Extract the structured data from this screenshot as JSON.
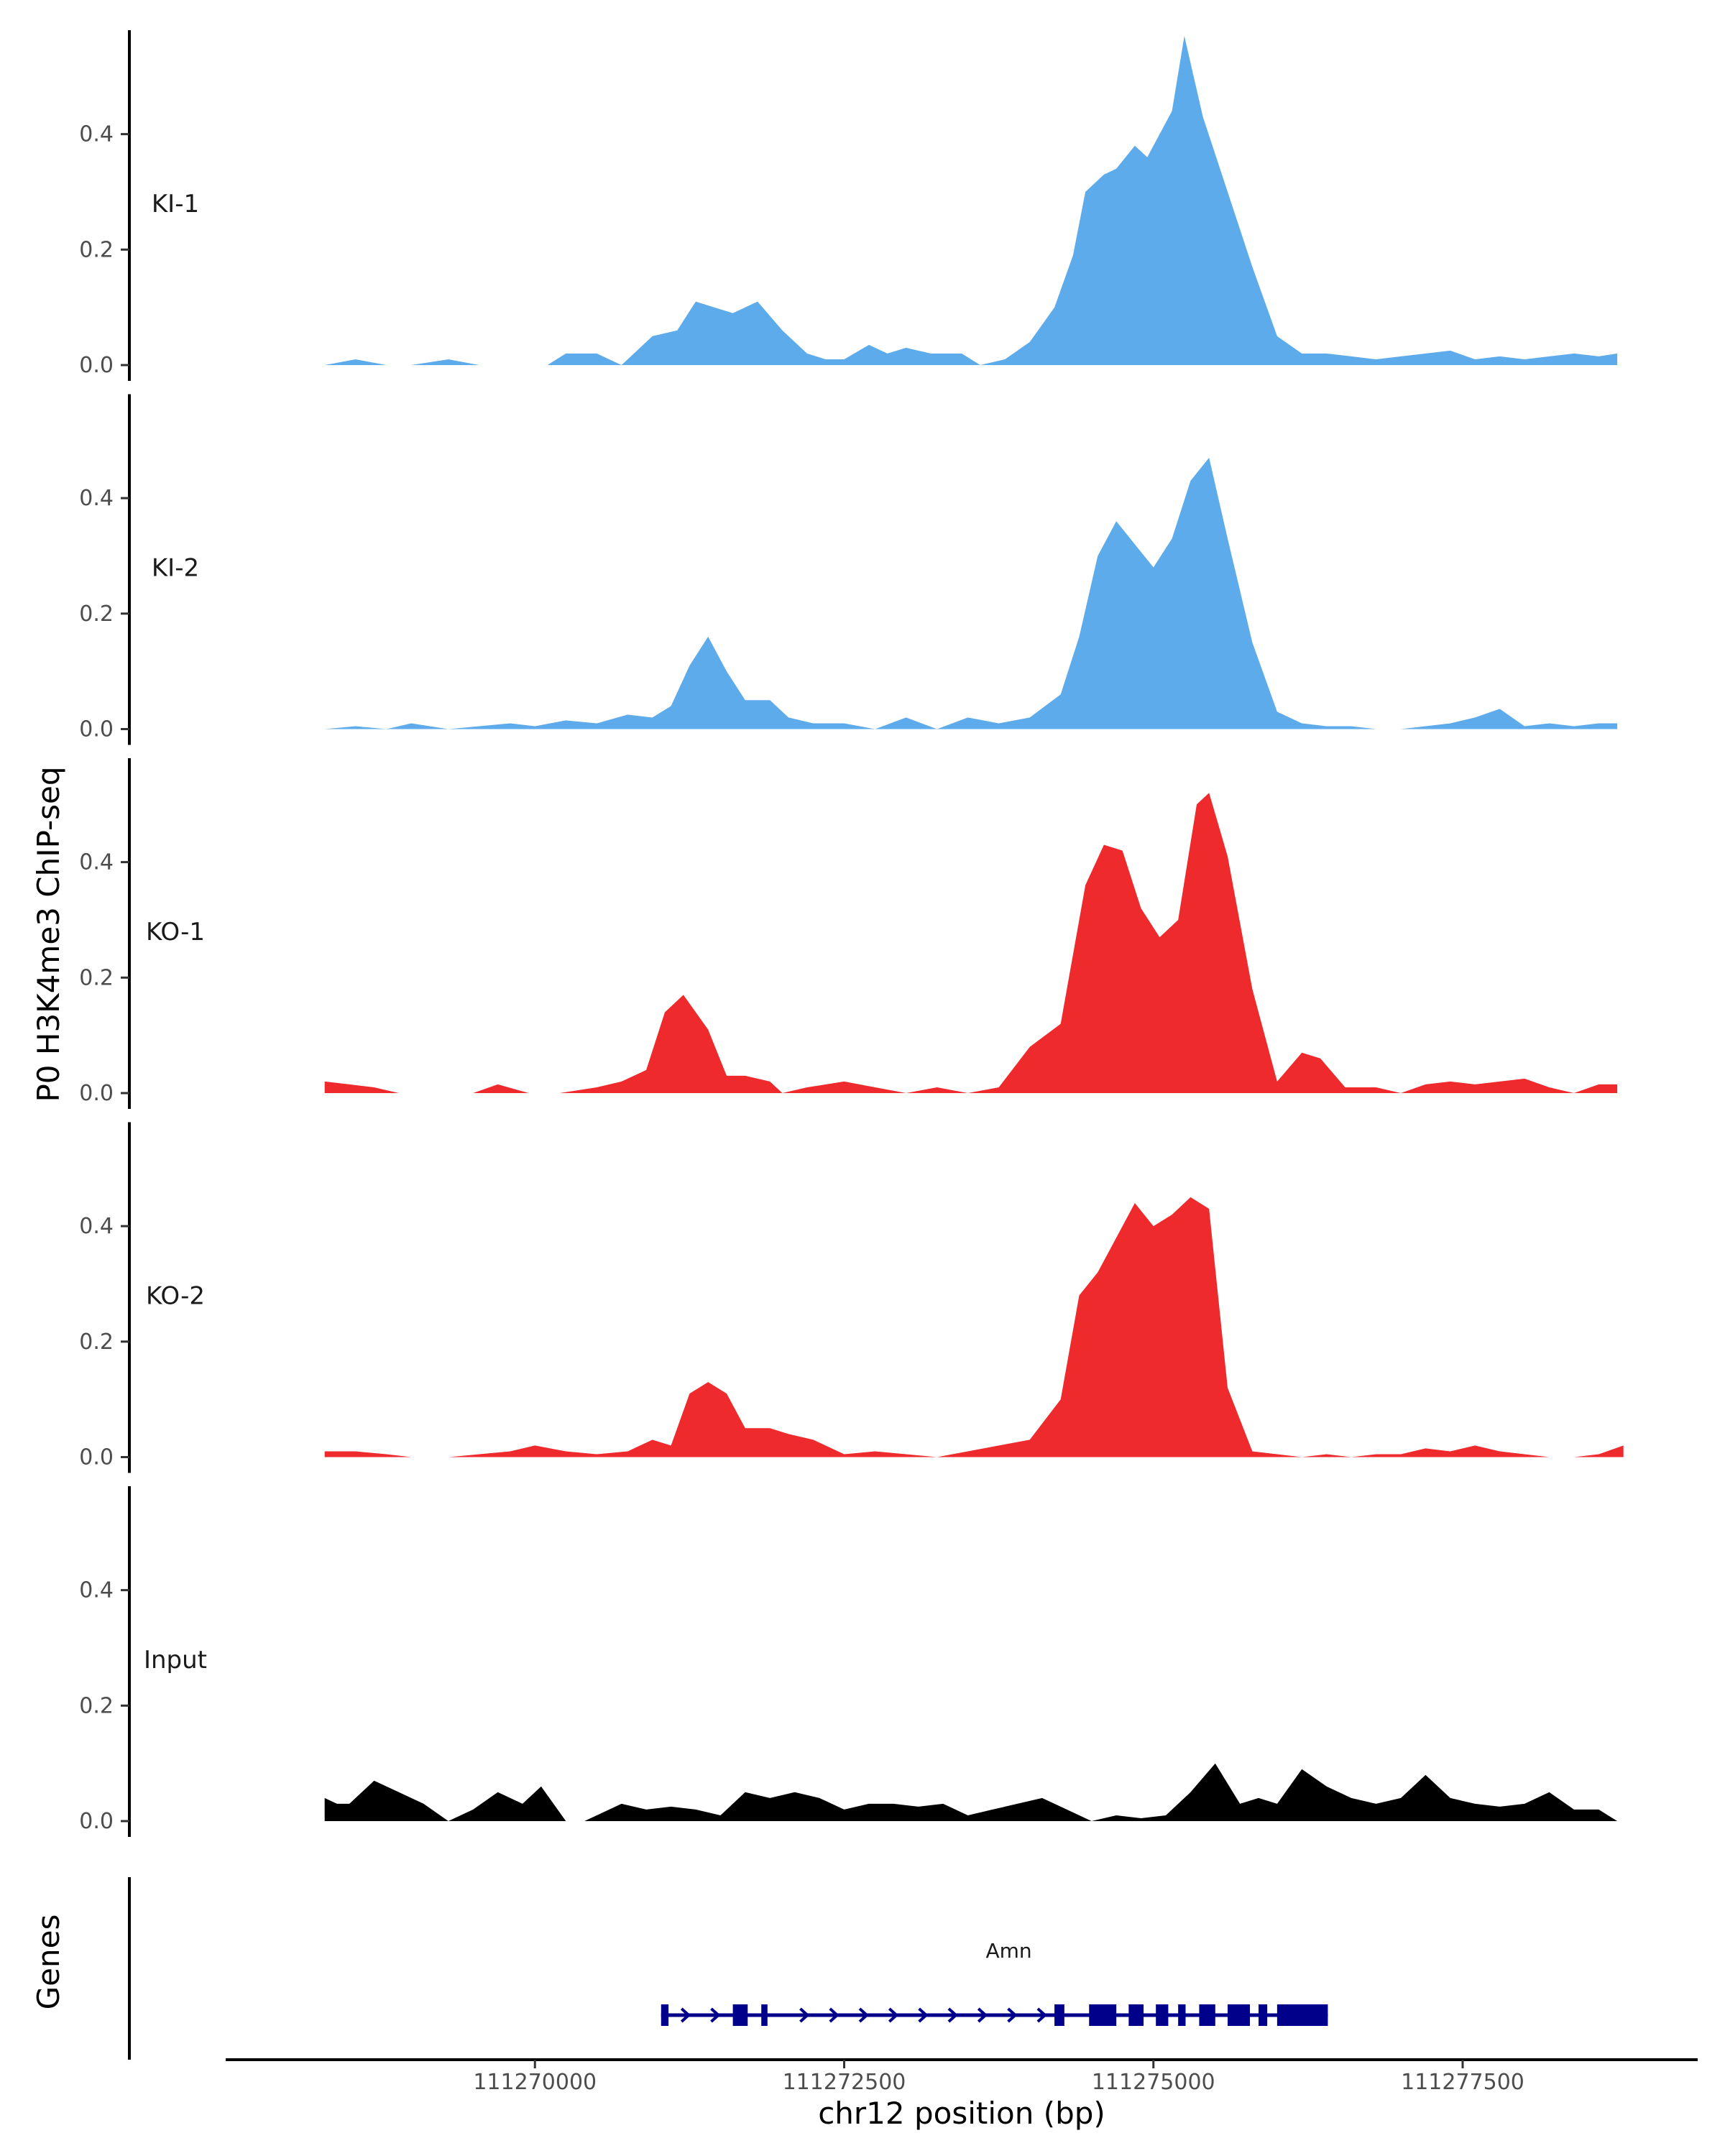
{
  "chart_data": {
    "type": "area",
    "title": "",
    "ylabel": "P0 H3K4me3 ChIP-seq",
    "xlabel": "chr12 position (bp)",
    "xlim": [
      111267500,
      111279400
    ],
    "ylim": [
      0,
      0.58
    ],
    "yticks": [
      0.0,
      0.2,
      0.4
    ],
    "ytick_labels": [
      "0.0",
      "0.2",
      "0.4"
    ],
    "xticks": [
      111270000,
      111272500,
      111275000,
      111277500
    ],
    "xtick_labels": [
      "111270000",
      "111272500",
      "111275000",
      "111277500"
    ],
    "colors": {
      "KI": "#5eabec",
      "KO": "#ee2a2c",
      "Input": "#000000",
      "gene": "#00008b"
    },
    "tracks": [
      {
        "name": "KI-1",
        "color": "#5eabec",
        "x": [
          111268300,
          111268550,
          111268800,
          111269000,
          111269300,
          111269550,
          111269800,
          111270100,
          111270250,
          111270500,
          111270700,
          111270950,
          111271150,
          111271300,
          111271450,
          111271600,
          111271800,
          111272000,
          111272200,
          111272350,
          111272500,
          111272700,
          111272850,
          111273000,
          111273200,
          111273450,
          111273600,
          111273800,
          111274000,
          111274200,
          111274350,
          111274450,
          111274600,
          111274700,
          111274850,
          111274950,
          111275050,
          111275150,
          111275250,
          111275400,
          111275600,
          111275800,
          111276000,
          111276200,
          111276400,
          111276600,
          111276800,
          111277000,
          111277200,
          111277400,
          111277600,
          111277800,
          111278000,
          111278200,
          111278400,
          111278600,
          111278750
        ],
        "values": [
          0.0,
          0.01,
          0.0,
          0.0,
          0.01,
          0.0,
          0.0,
          0.0,
          0.02,
          0.02,
          0.0,
          0.05,
          0.06,
          0.11,
          0.1,
          0.09,
          0.11,
          0.06,
          0.02,
          0.01,
          0.01,
          0.035,
          0.02,
          0.03,
          0.02,
          0.02,
          0.0,
          0.01,
          0.04,
          0.1,
          0.19,
          0.3,
          0.33,
          0.34,
          0.38,
          0.36,
          0.4,
          0.44,
          0.57,
          0.43,
          0.3,
          0.17,
          0.05,
          0.02,
          0.02,
          0.015,
          0.01,
          0.015,
          0.02,
          0.025,
          0.01,
          0.015,
          0.01,
          0.015,
          0.02,
          0.015,
          0.02
        ]
      },
      {
        "name": "KI-2",
        "color": "#5eabec",
        "x": [
          111268300,
          111268550,
          111268800,
          111269000,
          111269300,
          111269550,
          111269800,
          111270000,
          111270250,
          111270500,
          111270750,
          111270950,
          111271100,
          111271250,
          111271400,
          111271550,
          111271700,
          111271900,
          111272050,
          111272250,
          111272500,
          111272750,
          111273000,
          111273250,
          111273500,
          111273750,
          111274000,
          111274250,
          111274400,
          111274550,
          111274700,
          111274850,
          111275000,
          111275150,
          111275300,
          111275450,
          111275600,
          111275800,
          111276000,
          111276200,
          111276400,
          111276600,
          111276800,
          111277000,
          111277200,
          111277400,
          111277600,
          111277800,
          111278000,
          111278200,
          111278400,
          111278600,
          111278750
        ],
        "values": [
          0.0,
          0.005,
          0.0,
          0.01,
          0.0,
          0.005,
          0.01,
          0.005,
          0.015,
          0.01,
          0.025,
          0.02,
          0.04,
          0.11,
          0.16,
          0.1,
          0.05,
          0.05,
          0.02,
          0.01,
          0.01,
          0.0,
          0.02,
          0.0,
          0.02,
          0.01,
          0.02,
          0.06,
          0.16,
          0.3,
          0.36,
          0.32,
          0.28,
          0.33,
          0.43,
          0.47,
          0.33,
          0.15,
          0.03,
          0.01,
          0.005,
          0.005,
          0.0,
          0.0,
          0.005,
          0.01,
          0.02,
          0.035,
          0.005,
          0.01,
          0.005,
          0.01,
          0.01
        ]
      },
      {
        "name": "KO-1",
        "color": "#ee2a2c",
        "x": [
          111268300,
          111268500,
          111268700,
          111268900,
          111269200,
          111269500,
          111269700,
          111269950,
          111270200,
          111270500,
          111270700,
          111270900,
          111271050,
          111271200,
          111271400,
          111271550,
          111271700,
          111271900,
          111272000,
          111272200,
          111272500,
          111272750,
          111273000,
          111273250,
          111273500,
          111273750,
          111274000,
          111274250,
          111274450,
          111274600,
          111274750,
          111274900,
          111275050,
          111275200,
          111275350,
          111275450,
          111275600,
          111275800,
          111276000,
          111276200,
          111276350,
          111276550,
          111276800,
          111277000,
          111277200,
          111277400,
          111277600,
          111277800,
          111278000,
          111278200,
          111278400,
          111278600,
          111278750
        ],
        "values": [
          0.02,
          0.015,
          0.01,
          0.0,
          0.0,
          0.0,
          0.015,
          0.0,
          0.0,
          0.01,
          0.02,
          0.04,
          0.14,
          0.17,
          0.11,
          0.03,
          0.03,
          0.02,
          0.0,
          0.01,
          0.02,
          0.01,
          0.0,
          0.01,
          0.0,
          0.01,
          0.08,
          0.12,
          0.36,
          0.43,
          0.42,
          0.32,
          0.27,
          0.3,
          0.5,
          0.52,
          0.41,
          0.18,
          0.02,
          0.07,
          0.06,
          0.01,
          0.01,
          0.0,
          0.015,
          0.02,
          0.015,
          0.02,
          0.025,
          0.01,
          0.0,
          0.015,
          0.015
        ]
      },
      {
        "name": "KO-2",
        "color": "#ee2a2c",
        "x": [
          111268300,
          111268550,
          111268800,
          111269000,
          111269300,
          111269550,
          111269800,
          111270000,
          111270250,
          111270500,
          111270750,
          111270950,
          111271100,
          111271250,
          111271400,
          111271550,
          111271700,
          111271900,
          111272050,
          111272250,
          111272500,
          111272750,
          111273000,
          111273250,
          111273500,
          111273750,
          111274000,
          111274250,
          111274400,
          111274550,
          111274700,
          111274850,
          111275000,
          111275150,
          111275300,
          111275450,
          111275600,
          111275800,
          111276000,
          111276200,
          111276400,
          111276600,
          111276800,
          111277000,
          111277200,
          111277400,
          111277600,
          111277800,
          111278000,
          111278200,
          111278400,
          111278600,
          111278800
        ],
        "values": [
          0.01,
          0.01,
          0.005,
          0.0,
          0.0,
          0.005,
          0.01,
          0.02,
          0.01,
          0.005,
          0.01,
          0.03,
          0.02,
          0.11,
          0.13,
          0.11,
          0.05,
          0.05,
          0.04,
          0.03,
          0.005,
          0.01,
          0.005,
          0.0,
          0.01,
          0.02,
          0.03,
          0.1,
          0.28,
          0.32,
          0.38,
          0.44,
          0.4,
          0.42,
          0.45,
          0.43,
          0.12,
          0.01,
          0.005,
          0.0,
          0.005,
          0.0,
          0.005,
          0.005,
          0.015,
          0.01,
          0.02,
          0.01,
          0.005,
          0.0,
          0.0,
          0.005,
          0.02
        ]
      },
      {
        "name": "Input",
        "color": "#000000",
        "x": [
          111268300,
          111268400,
          111268500,
          111268700,
          111268900,
          111269100,
          111269300,
          111269500,
          111269700,
          111269900,
          111270050,
          111270250,
          111270400,
          111270500,
          111270700,
          111270900,
          111271100,
          111271300,
          111271500,
          111271700,
          111271900,
          111272100,
          111272300,
          111272500,
          111272700,
          111272900,
          111273100,
          111273300,
          111273500,
          111273700,
          111273900,
          111274100,
          111274300,
          111274500,
          111274700,
          111274900,
          111275100,
          111275300,
          111275500,
          111275700,
          111275850,
          111276000,
          111276200,
          111276400,
          111276600,
          111276800,
          111277000,
          111277200,
          111277400,
          111277600,
          111277800,
          111278000,
          111278200,
          111278400,
          111278600,
          111278750
        ],
        "values": [
          0.04,
          0.03,
          0.03,
          0.07,
          0.05,
          0.03,
          0.0,
          0.02,
          0.05,
          0.03,
          0.06,
          0.0,
          0.0,
          0.01,
          0.03,
          0.02,
          0.025,
          0.02,
          0.01,
          0.05,
          0.04,
          0.05,
          0.04,
          0.02,
          0.03,
          0.03,
          0.025,
          0.03,
          0.01,
          0.02,
          0.03,
          0.04,
          0.02,
          0.0,
          0.01,
          0.005,
          0.01,
          0.05,
          0.1,
          0.03,
          0.04,
          0.03,
          0.09,
          0.06,
          0.04,
          0.03,
          0.04,
          0.08,
          0.04,
          0.03,
          0.025,
          0.03,
          0.05,
          0.02,
          0.02,
          0.0
        ]
      }
    ],
    "genes_label": "Genes",
    "gene": {
      "name": "Amn",
      "start": 111271020,
      "end": 111276410,
      "exons": [
        [
          111271020,
          111271080
        ],
        [
          111271600,
          111271720
        ],
        [
          111271830,
          111271880
        ],
        [
          111274200,
          111274280
        ],
        [
          111274480,
          111274700
        ],
        [
          111274800,
          111274920
        ],
        [
          111275020,
          111275120
        ],
        [
          111275200,
          111275260
        ],
        [
          111275370,
          111275500
        ],
        [
          111275600,
          111275780
        ],
        [
          111275850,
          111275920
        ],
        [
          111276000,
          111276410
        ]
      ]
    }
  }
}
